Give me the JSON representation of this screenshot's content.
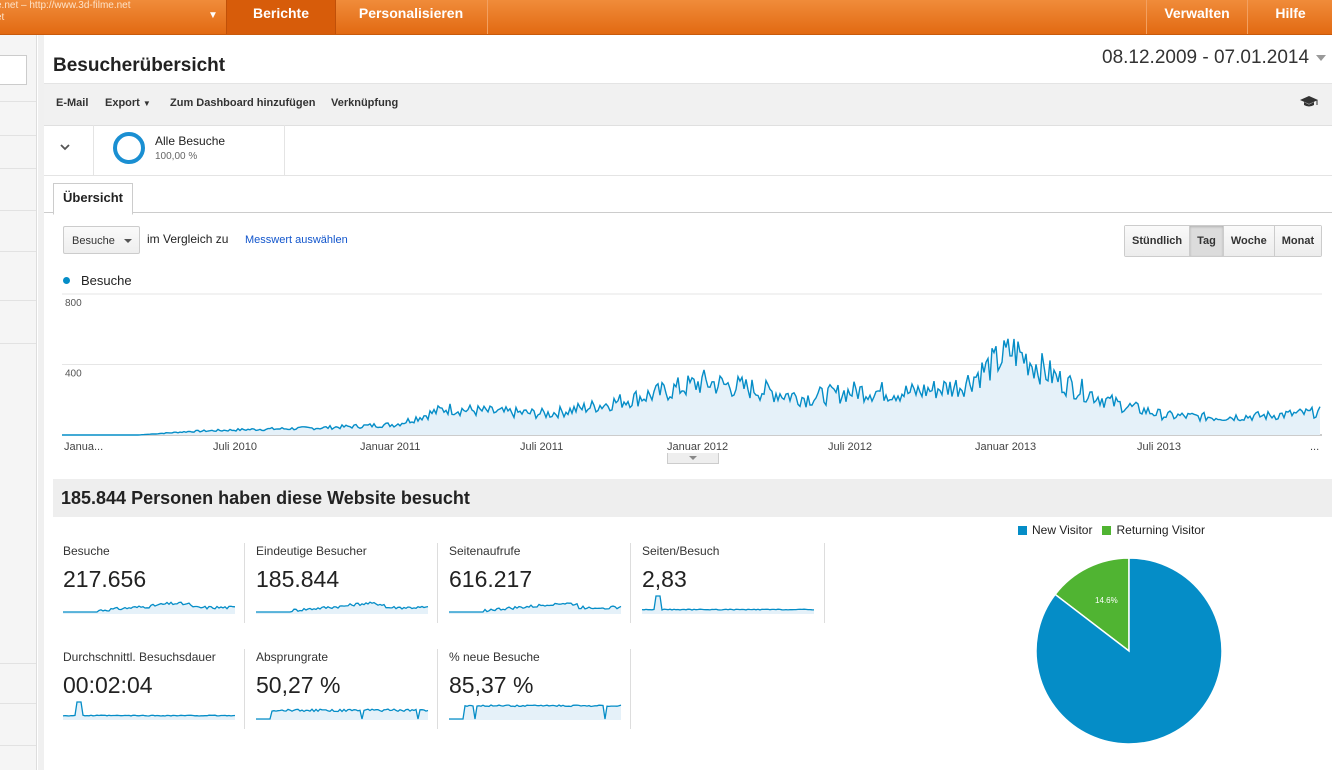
{
  "account": {
    "line1": "e.net – http://www.3d-filme.net",
    "line2": "et"
  },
  "nav": {
    "tab_berichte": "Berichte",
    "tab_personalisieren": "Personalisieren",
    "verwalten": "Verwalten",
    "hilfe": "Hilfe"
  },
  "page": {
    "title": "Besucherübersicht",
    "date_range": "08.12.2009 - 07.01.2014"
  },
  "toolbar": {
    "email": "E-Mail",
    "export": "Export",
    "dashboard": "Zum Dashboard hinzufügen",
    "link": "Verknüpfung"
  },
  "segment": {
    "label": "Alle Besuche",
    "percent": "100,00 %"
  },
  "tabs": {
    "overview": "Übersicht"
  },
  "controls": {
    "metric_select": "Besuche",
    "compare_label": "im Vergleich zu",
    "metric_link": "Messwert auswählen",
    "granularity": [
      "Stündlich",
      "Tag",
      "Woche",
      "Monat"
    ],
    "granularity_selected": "Tag"
  },
  "chart_data": {
    "type": "area",
    "legend": "Besuche",
    "color": "#058dc7",
    "ylim": [
      0,
      800
    ],
    "ytick_labels": [
      "800",
      "400"
    ],
    "x_tick_labels": [
      "Janua...",
      "Juli 2010",
      "Januar 2011",
      "Juli 2011",
      "Januar 2012",
      "Juli 2012",
      "Januar 2013",
      "Juli 2013",
      "..."
    ],
    "monthly_approx": [
      {
        "x": "2009-12",
        "y": 0
      },
      {
        "x": "2010-03",
        "y": 0
      },
      {
        "x": "2010-05",
        "y": 20
      },
      {
        "x": "2010-07",
        "y": 30
      },
      {
        "x": "2010-10",
        "y": 40
      },
      {
        "x": "2011-01",
        "y": 60
      },
      {
        "x": "2011-03",
        "y": 150
      },
      {
        "x": "2011-05",
        "y": 130
      },
      {
        "x": "2011-07",
        "y": 120
      },
      {
        "x": "2011-09",
        "y": 170
      },
      {
        "x": "2011-11",
        "y": 230
      },
      {
        "x": "2012-01",
        "y": 300
      },
      {
        "x": "2012-03",
        "y": 260
      },
      {
        "x": "2012-05",
        "y": 210
      },
      {
        "x": "2012-07",
        "y": 250
      },
      {
        "x": "2012-09",
        "y": 240
      },
      {
        "x": "2012-11",
        "y": 280
      },
      {
        "x": "2013-01",
        "y": 480
      },
      {
        "x": "2013-03",
        "y": 300
      },
      {
        "x": "2013-05",
        "y": 180
      },
      {
        "x": "2013-07",
        "y": 110
      },
      {
        "x": "2013-09",
        "y": 100
      },
      {
        "x": "2013-11",
        "y": 110
      },
      {
        "x": "2014-01",
        "y": 130
      }
    ]
  },
  "summary": {
    "headline": "185.844 Personen haben diese Website besucht"
  },
  "metrics": [
    {
      "label": "Besuche",
      "value": "217.656"
    },
    {
      "label": "Eindeutige Besucher",
      "value": "185.844"
    },
    {
      "label": "Seitenaufrufe",
      "value": "616.217"
    },
    {
      "label": "Seiten/Besuch",
      "value": "2,83"
    },
    {
      "label": "Durchschnittl. Besuchsdauer",
      "value": "00:02:04"
    },
    {
      "label": "Absprungrate",
      "value": "50,27 %"
    },
    {
      "label": "% neue Besuche",
      "value": "85,37 %"
    }
  ],
  "pie": {
    "type": "pie",
    "series": [
      {
        "name": "New Visitor",
        "value": 85.4,
        "label": "85.4%",
        "color": "#058dc7"
      },
      {
        "name": "Returning Visitor",
        "value": 14.6,
        "label": "14.6%",
        "color": "#50b432"
      }
    ]
  }
}
